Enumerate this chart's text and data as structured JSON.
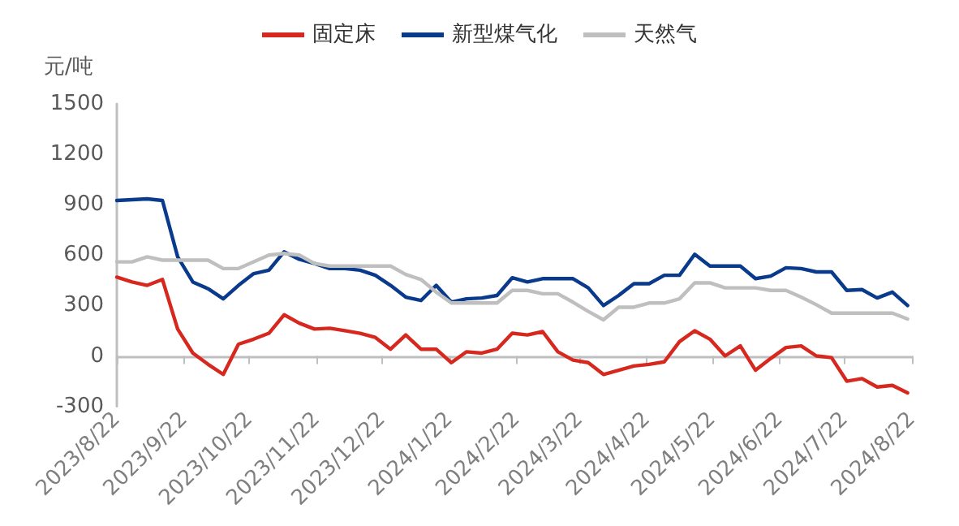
{
  "chart_data": {
    "type": "line",
    "ylabel": "元/吨",
    "legend": "top",
    "grid": false,
    "marker": "none",
    "line_style": "solid",
    "x": [
      "2023-08-22",
      "2023-08-29",
      "2023-09-05",
      "2023-09-12",
      "2023-09-19",
      "2023-09-26",
      "2023-10-03",
      "2023-10-10",
      "2023-10-17",
      "2023-10-24",
      "2023-10-31",
      "2023-11-07",
      "2023-11-14",
      "2023-11-21",
      "2023-11-28",
      "2023-12-05",
      "2023-12-12",
      "2023-12-19",
      "2023-12-26",
      "2024-01-02",
      "2024-01-09",
      "2024-01-16",
      "2024-01-23",
      "2024-01-30",
      "2024-02-06",
      "2024-02-13",
      "2024-02-20",
      "2024-02-27",
      "2024-03-05",
      "2024-03-12",
      "2024-03-19",
      "2024-03-26",
      "2024-04-02",
      "2024-04-09",
      "2024-04-16",
      "2024-04-23",
      "2024-04-30",
      "2024-05-07",
      "2024-05-14",
      "2024-05-21",
      "2024-05-28",
      "2024-06-04",
      "2024-06-11",
      "2024-06-18",
      "2024-06-25",
      "2024-07-02",
      "2024-07-09",
      "2024-07-16",
      "2024-07-23",
      "2024-07-30",
      "2024-08-06",
      "2024-08-13",
      "2024-08-20"
    ],
    "series": [
      {
        "name": "固定床",
        "color": "#d7281f",
        "values": [
          469,
          440,
          420,
          455,
          160,
          17,
          -50,
          -110,
          70,
          100,
          135,
          245,
          195,
          160,
          165,
          150,
          135,
          110,
          40,
          125,
          40,
          40,
          -40,
          25,
          17,
          40,
          135,
          125,
          145,
          25,
          -25,
          -40,
          -110,
          -85,
          -60,
          -50,
          -35,
          85,
          150,
          100,
          0,
          60,
          -85,
          -15,
          50,
          60,
          0,
          -10,
          -150,
          -135,
          -185,
          -175,
          -220
        ]
      },
      {
        "name": "新型煤气化",
        "color": "#0a3a8c",
        "values": [
          925,
          930,
          935,
          925,
          590,
          440,
          400,
          340,
          420,
          490,
          510,
          620,
          575,
          550,
          520,
          520,
          510,
          480,
          420,
          350,
          330,
          420,
          320,
          340,
          345,
          360,
          465,
          440,
          460,
          460,
          460,
          405,
          300,
          360,
          430,
          430,
          480,
          480,
          605,
          535,
          535,
          535,
          460,
          475,
          525,
          520,
          500,
          500,
          390,
          395,
          345,
          380,
          300
        ]
      },
      {
        "name": "天然气",
        "color": "#bfbfbf",
        "values": [
          560,
          560,
          590,
          570,
          570,
          570,
          570,
          520,
          520,
          560,
          600,
          610,
          600,
          550,
          535,
          535,
          535,
          535,
          535,
          485,
          455,
          380,
          315,
          315,
          315,
          315,
          390,
          390,
          370,
          370,
          320,
          265,
          215,
          290,
          290,
          315,
          315,
          340,
          435,
          435,
          405,
          405,
          405,
          390,
          390,
          350,
          305,
          255,
          255,
          255,
          255,
          255,
          220
        ]
      }
    ],
    "xlim": [
      "2023-08-22",
      "2024-08-22"
    ],
    "xticks": [
      {
        "value": "2023-08-22",
        "label": "2023/8/22"
      },
      {
        "value": "2023-09-22",
        "label": "2023/9/22"
      },
      {
        "value": "2023-10-22",
        "label": "2023/10/22"
      },
      {
        "value": "2023-11-22",
        "label": "2023/11/22"
      },
      {
        "value": "2023-12-22",
        "label": "2023/12/22"
      },
      {
        "value": "2024-01-22",
        "label": "2024/1/22"
      },
      {
        "value": "2024-02-22",
        "label": "2024/2/22"
      },
      {
        "value": "2024-03-22",
        "label": "2024/3/22"
      },
      {
        "value": "2024-04-22",
        "label": "2024/4/22"
      },
      {
        "value": "2024-05-22",
        "label": "2024/5/22"
      },
      {
        "value": "2024-06-22",
        "label": "2024/6/22"
      },
      {
        "value": "2024-07-22",
        "label": "2024/7/22"
      },
      {
        "value": "2024-08-22",
        "label": "2024/8/22"
      }
    ],
    "ylim": [
      -300,
      1500
    ],
    "yticks": [
      -300,
      0,
      300,
      600,
      900,
      1200,
      1500
    ]
  }
}
